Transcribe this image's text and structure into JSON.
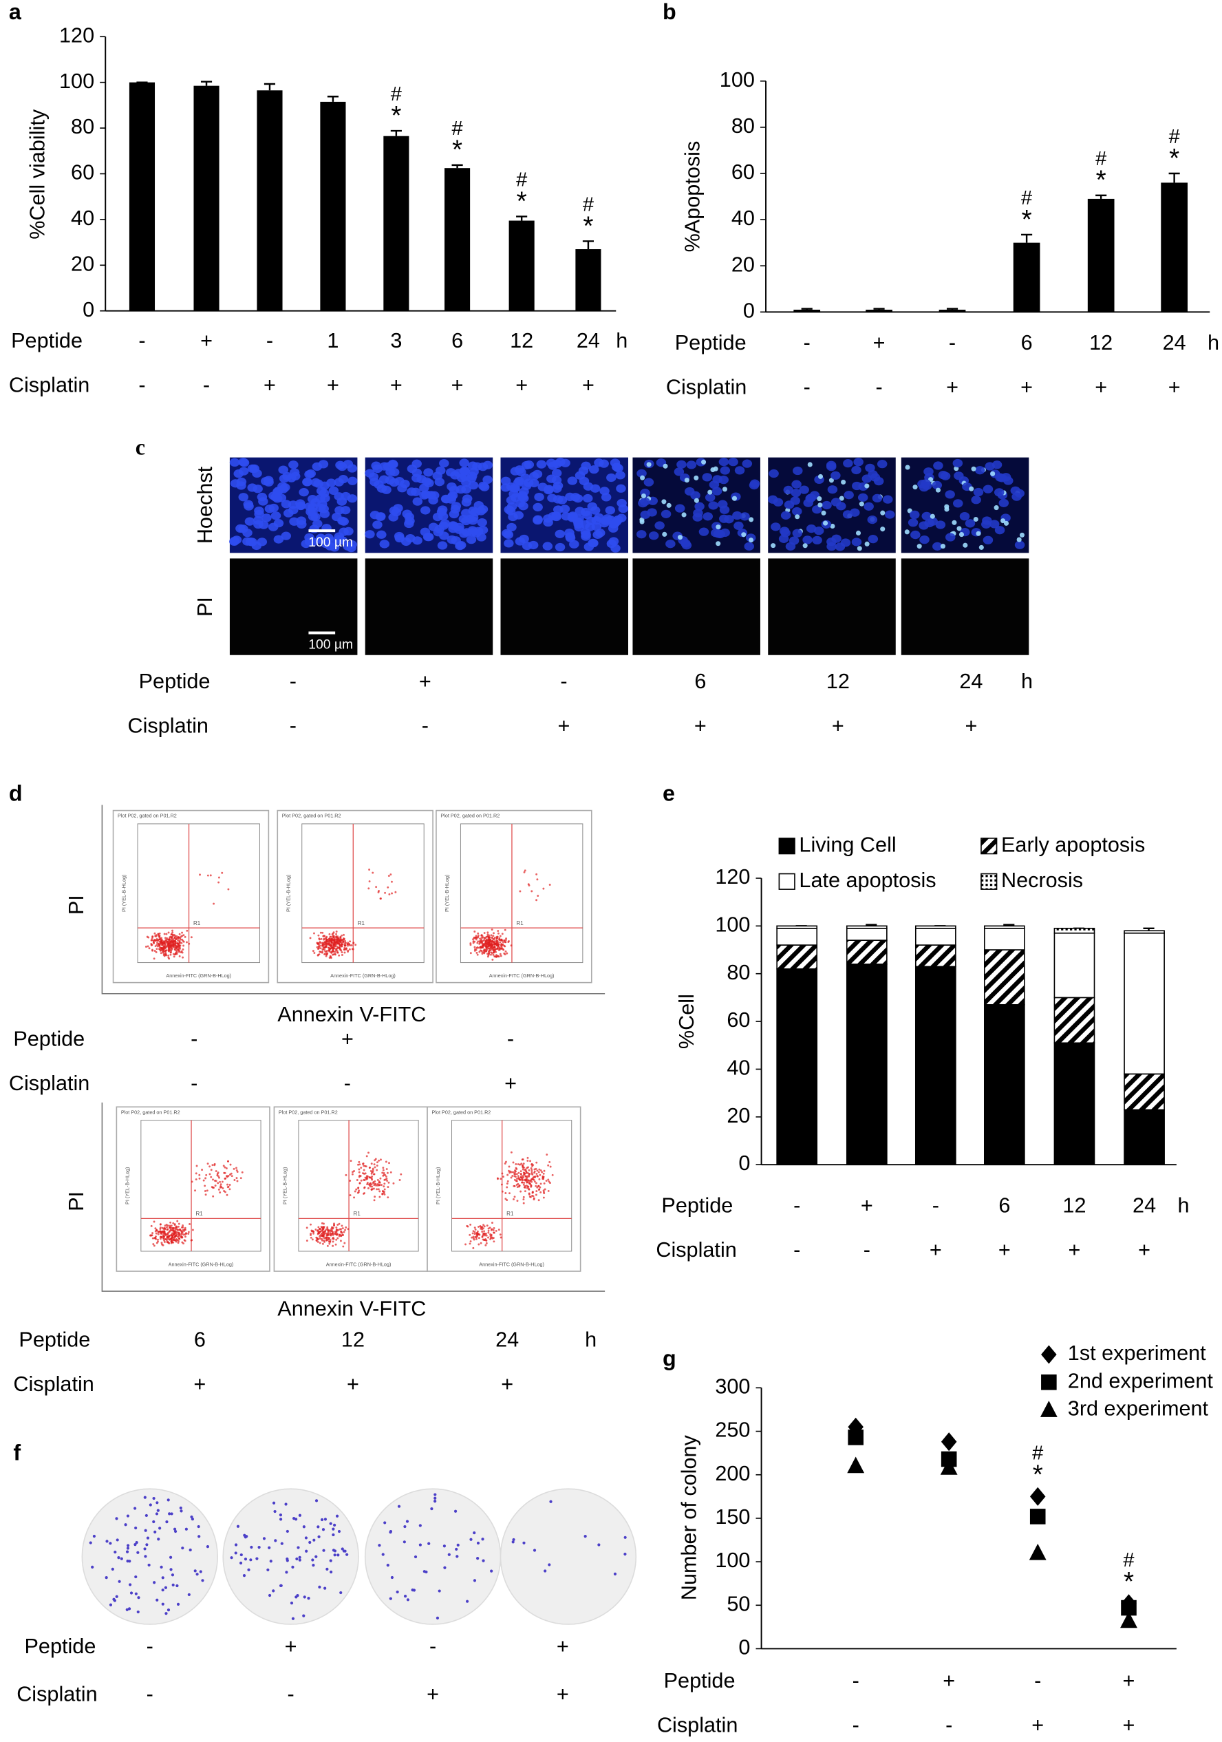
{
  "chart_data": [
    {
      "type": "bar",
      "panel": "a",
      "ylabel": "%Cell viability",
      "ylim": [
        0,
        120
      ],
      "yticks": [
        0,
        20,
        40,
        60,
        80,
        100,
        120
      ],
      "color": "#000000",
      "values": [
        100,
        98.5,
        96.5,
        91.5,
        76.5,
        62.5,
        39.5,
        27
      ],
      "errors": [
        0,
        1.8,
        2.8,
        2.3,
        2.3,
        1.3,
        1.8,
        3.5
      ],
      "hash": [
        null,
        null,
        null,
        null,
        "#",
        "#",
        "#",
        "#"
      ],
      "star": [
        null,
        null,
        null,
        null,
        "*",
        "*",
        "*",
        "*"
      ],
      "conditions": [
        {
          "label": "Peptide",
          "values": [
            "-",
            "+",
            "-",
            "1",
            "3",
            "6",
            "12",
            "24"
          ],
          "unit": "h"
        },
        {
          "label": "Cisplatin",
          "values": [
            "-",
            "-",
            "+",
            "+",
            "+",
            "+",
            "+",
            "+"
          ]
        }
      ]
    },
    {
      "type": "bar",
      "panel": "b",
      "ylabel": "%Apoptosis",
      "ylim": [
        0,
        100
      ],
      "yticks": [
        0,
        20,
        40,
        60,
        80,
        100
      ],
      "color": "#000000",
      "values": [
        1,
        1,
        1,
        30,
        49,
        56
      ],
      "errors": [
        0.4,
        0.4,
        0.4,
        3.5,
        1.5,
        4
      ],
      "hash": [
        null,
        null,
        null,
        "#",
        "#",
        "#"
      ],
      "star": [
        null,
        null,
        null,
        "*",
        "*",
        "*"
      ],
      "conditions": [
        {
          "label": "Peptide",
          "values": [
            "-",
            "+",
            "-",
            "6",
            "12",
            "24"
          ],
          "unit": "h"
        },
        {
          "label": "Cisplatin",
          "values": [
            "-",
            "-",
            "+",
            "+",
            "+",
            "+"
          ]
        }
      ]
    },
    {
      "type": "stacked_bar",
      "panel": "e",
      "ylabel": "%Cell",
      "ylim": [
        0,
        120
      ],
      "yticks": [
        0,
        20,
        40,
        60,
        80,
        100,
        120
      ],
      "series": [
        {
          "name": "Living Cell",
          "color": "#000000",
          "values": [
            82,
            84,
            83,
            67,
            51,
            23
          ],
          "errors": [
            1,
            1,
            1,
            1.5,
            2,
            2
          ]
        },
        {
          "name": "Early apoptosis",
          "color": "#ffffff",
          "pattern": "hatch",
          "values": [
            10,
            10,
            9,
            23,
            19,
            15
          ],
          "errors": [
            3,
            2,
            3,
            2.5,
            2,
            3
          ]
        },
        {
          "name": "Late apoptosis",
          "color": "#ffffff",
          "values": [
            7,
            5,
            7,
            9,
            27,
            59
          ],
          "errors": [
            1,
            1.5,
            1,
            1.5,
            2,
            2
          ]
        },
        {
          "name": "Necrosis",
          "color": "#ffffff",
          "pattern": "dots",
          "values": [
            1,
            1,
            1,
            1,
            2,
            1
          ]
        }
      ],
      "conditions": [
        {
          "label": "Peptide",
          "values": [
            "-",
            "+",
            "-",
            "6",
            "12",
            "24"
          ],
          "unit": "h"
        },
        {
          "label": "Cisplatin",
          "values": [
            "-",
            "-",
            "+",
            "+",
            "+",
            "+"
          ]
        }
      ]
    },
    {
      "type": "scatter",
      "panel": "g",
      "ylabel": "Number of colony",
      "ylim": [
        0,
        300
      ],
      "yticks": [
        0,
        50,
        100,
        150,
        200,
        250,
        300
      ],
      "series": [
        {
          "name": "1st experiment",
          "color": "#000000",
          "marker": "diamond",
          "values": [
            255,
            238,
            175,
            52
          ]
        },
        {
          "name": "2nd experiment",
          "color": "#000000",
          "marker": "square",
          "values": [
            243,
            218,
            152,
            47
          ]
        },
        {
          "name": "3rd experiment",
          "color": "#000000",
          "marker": "triangle",
          "values": [
            210,
            208,
            110,
            32
          ]
        }
      ],
      "hash": [
        null,
        null,
        "#",
        "#"
      ],
      "star": [
        null,
        null,
        "*",
        "*"
      ],
      "conditions": [
        {
          "label": "Peptide",
          "values": [
            "-",
            "+",
            "-",
            "+"
          ]
        },
        {
          "label": "Cisplatin",
          "values": [
            "-",
            "-",
            "+",
            "+"
          ]
        }
      ]
    }
  ],
  "panels": {
    "c": {
      "panel": "c",
      "rows": [
        "Hoechst",
        "PI"
      ],
      "scale_bar": "100 µm",
      "conditions": [
        {
          "label": "Peptide",
          "values": [
            "-",
            "+",
            "-",
            "6",
            "12",
            "24"
          ],
          "unit": "h"
        },
        {
          "label": "Cisplatin",
          "values": [
            "-",
            "-",
            "+",
            "+",
            "+",
            "+"
          ]
        }
      ]
    },
    "d": {
      "panel": "d",
      "y_label": "PI",
      "x_label": "Annexin V-FITC",
      "plot_title": "Plot P02, gated on P01.R2",
      "plot_x_label": "Annexin-FITC (GRN-B-HLog)",
      "plot_y_label": "PI (YEL-B-HLog)",
      "gate_label": "R1",
      "groups": [
        {
          "conditions": [
            {
              "label": "Peptide",
              "values": [
                "-",
                "+",
                "-"
              ]
            },
            {
              "label": "Cisplatin",
              "values": [
                "-",
                "-",
                "+"
              ]
            }
          ]
        },
        {
          "conditions": [
            {
              "label": "Peptide",
              "values": [
                "6",
                "12",
                "24"
              ],
              "unit": "h"
            },
            {
              "label": "Cisplatin",
              "values": [
                "+",
                "+",
                "+"
              ]
            }
          ]
        }
      ]
    },
    "f": {
      "panel": "f",
      "conditions": [
        {
          "label": "Peptide",
          "values": [
            "-",
            "+",
            "-",
            "+"
          ]
        },
        {
          "label": "Cisplatin",
          "values": [
            "-",
            "-",
            "+",
            "+"
          ]
        }
      ]
    }
  }
}
